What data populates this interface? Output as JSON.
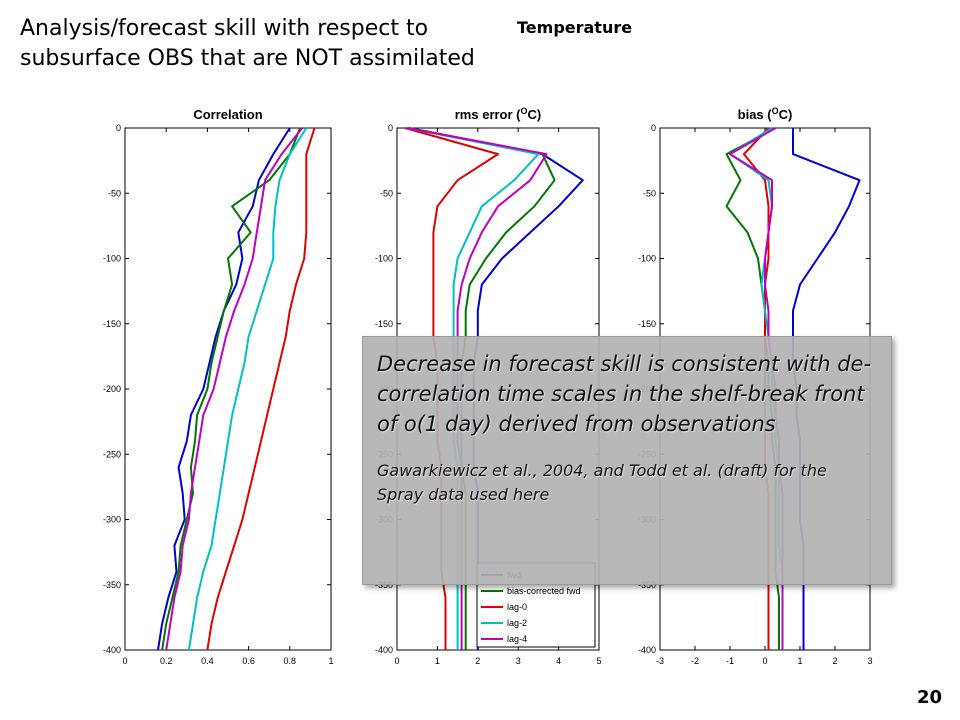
{
  "slide": {
    "title_line1": "Analysis/forecast skill with respect to",
    "title_line2": "subsurface OBS that are NOT assimilated",
    "topic": "Temperature",
    "page_number": "20"
  },
  "callout": {
    "main": "Decrease in forecast skill is consistent with de-correlation time scales in the shelf-break front of o(1 day) derived from observations",
    "citation": "Gawarkiewicz et al., 2004, and Todd et al. (draft) for the Spray data used here"
  },
  "colors": {
    "fwd": "#0000d0",
    "bias_corrected_fwd": "#007800",
    "lag_0": "#e00000",
    "lag_2": "#00c0c0",
    "lag_4": "#c000c0"
  },
  "chart_data": [
    {
      "type": "line",
      "title": "Correlation",
      "xlim": [
        0,
        1
      ],
      "ylim": [
        -400,
        0
      ],
      "xticks": [
        "0",
        "0.2",
        "0.4",
        "0.6",
        "0.8",
        "1"
      ],
      "yticks": [
        "0",
        "-50",
        "-100",
        "-150",
        "-200",
        "-250",
        "-300",
        "-350",
        "-400"
      ],
      "grid": false,
      "y": [
        0,
        -20,
        -40,
        -60,
        -80,
        -100,
        -120,
        -140,
        -160,
        -180,
        -200,
        -220,
        -240,
        -260,
        -280,
        -300,
        -320,
        -340,
        -360,
        -380,
        -400
      ],
      "series": [
        {
          "name": "fwd",
          "color_key": "fwd",
          "x": [
            0.8,
            0.72,
            0.65,
            0.62,
            0.55,
            0.57,
            0.54,
            0.48,
            0.44,
            0.41,
            0.38,
            0.32,
            0.3,
            0.26,
            0.28,
            0.29,
            0.24,
            0.25,
            0.21,
            0.18,
            0.16
          ]
        },
        {
          "name": "bias-corrected fwd",
          "color_key": "bias_corrected_fwd",
          "x": [
            0.85,
            0.8,
            0.7,
            0.52,
            0.61,
            0.5,
            0.52,
            0.48,
            0.45,
            0.42,
            0.4,
            0.35,
            0.34,
            0.32,
            0.33,
            0.3,
            0.27,
            0.26,
            0.23,
            0.2,
            0.18
          ]
        },
        {
          "name": "lag-0",
          "color_key": "lag_0",
          "x": [
            0.92,
            0.88,
            0.88,
            0.88,
            0.88,
            0.87,
            0.83,
            0.8,
            0.78,
            0.75,
            0.72,
            0.69,
            0.66,
            0.63,
            0.6,
            0.57,
            0.53,
            0.49,
            0.45,
            0.42,
            0.4
          ]
        },
        {
          "name": "lag-2",
          "color_key": "lag_2",
          "x": [
            0.88,
            0.8,
            0.75,
            0.73,
            0.72,
            0.72,
            0.68,
            0.64,
            0.6,
            0.58,
            0.55,
            0.52,
            0.5,
            0.48,
            0.46,
            0.44,
            0.42,
            0.38,
            0.35,
            0.33,
            0.31
          ]
        },
        {
          "name": "lag-4",
          "color_key": "lag_4",
          "x": [
            0.86,
            0.76,
            0.68,
            0.66,
            0.64,
            0.62,
            0.58,
            0.53,
            0.49,
            0.46,
            0.43,
            0.38,
            0.36,
            0.34,
            0.32,
            0.31,
            0.28,
            0.27,
            0.24,
            0.22,
            0.2
          ]
        }
      ]
    },
    {
      "type": "line",
      "title": "rms error (",
      "title_sup": "O",
      "title_end": "C)",
      "xlim": [
        0,
        5
      ],
      "ylim": [
        -400,
        0
      ],
      "xticks": [
        "0",
        "1",
        "2",
        "3",
        "4",
        "5"
      ],
      "yticks": [
        "0",
        "-50",
        "-100",
        "-150",
        "-200",
        "-250",
        "-300",
        "-350",
        "-400"
      ],
      "grid": false,
      "legend": {
        "entries": [
          "fwd",
          "bias-corrected fwd",
          "lag-0",
          "lag-2",
          "lag-4"
        ],
        "placement": "bottom-right"
      },
      "y": [
        0,
        -20,
        -40,
        -60,
        -80,
        -100,
        -120,
        -140,
        -160,
        -180,
        -200,
        -220,
        -240,
        -260,
        -280,
        -300,
        -320,
        -340,
        -360,
        -380,
        -400
      ],
      "series": [
        {
          "name": "fwd",
          "color_key": "fwd",
          "x": [
            0.3,
            3.6,
            4.6,
            4.0,
            3.3,
            2.6,
            2.1,
            2.0,
            2.0,
            1.9,
            1.9,
            1.9,
            1.9,
            1.9,
            2.0,
            2.0,
            2.0,
            2.0,
            2.0,
            2.0,
            2.0
          ]
        },
        {
          "name": "bias-corrected fwd",
          "color_key": "bias_corrected_fwd",
          "x": [
            0.3,
            3.6,
            3.9,
            3.4,
            2.7,
            2.2,
            1.8,
            1.7,
            1.7,
            1.6,
            1.6,
            1.6,
            1.6,
            1.6,
            1.7,
            1.7,
            1.7,
            1.7,
            1.7,
            1.7,
            1.7
          ]
        },
        {
          "name": "lag-0",
          "color_key": "lag_0",
          "x": [
            0.2,
            2.5,
            1.5,
            1.0,
            0.9,
            0.9,
            0.9,
            0.9,
            0.9,
            1.0,
            1.0,
            1.0,
            1.0,
            1.1,
            1.1,
            1.1,
            1.1,
            1.1,
            1.2,
            1.2,
            1.2
          ]
        },
        {
          "name": "lag-2",
          "color_key": "lag_2",
          "x": [
            0.25,
            3.5,
            2.9,
            2.1,
            1.8,
            1.5,
            1.4,
            1.4,
            1.4,
            1.4,
            1.4,
            1.4,
            1.4,
            1.5,
            1.5,
            1.5,
            1.5,
            1.5,
            1.5,
            1.5,
            1.5
          ]
        },
        {
          "name": "lag-4",
          "color_key": "lag_4",
          "x": [
            0.25,
            3.7,
            3.3,
            2.5,
            2.1,
            1.8,
            1.6,
            1.5,
            1.5,
            1.5,
            1.5,
            1.5,
            1.5,
            1.6,
            1.6,
            1.6,
            1.6,
            1.6,
            1.6,
            1.6,
            1.6
          ]
        }
      ]
    },
    {
      "type": "line",
      "title": "bias (",
      "title_sup": "O",
      "title_end": "C)",
      "xlim": [
        -3,
        3
      ],
      "ylim": [
        -400,
        0
      ],
      "xticks": [
        "-3",
        "-2",
        "-1",
        "0",
        "1",
        "2",
        "3"
      ],
      "yticks": [
        "0",
        "-50",
        "-100",
        "-150",
        "-200",
        "-250",
        "-300",
        "-350",
        "-400"
      ],
      "grid": false,
      "y": [
        0,
        -20,
        -40,
        -60,
        -80,
        -100,
        -120,
        -140,
        -160,
        -180,
        -200,
        -220,
        -240,
        -260,
        -280,
        -300,
        -320,
        -340,
        -360,
        -380,
        -400
      ],
      "series": [
        {
          "name": "fwd",
          "color_key": "fwd",
          "x": [
            0.8,
            0.8,
            2.7,
            2.4,
            2.0,
            1.5,
            1.0,
            0.8,
            0.8,
            0.8,
            0.9,
            0.9,
            1.0,
            1.0,
            1.0,
            1.0,
            1.1,
            1.1,
            1.1,
            1.1,
            1.1
          ]
        },
        {
          "name": "bias-corrected fwd",
          "color_key": "bias_corrected_fwd",
          "x": [
            0.3,
            -1.1,
            -0.7,
            -1.1,
            -0.5,
            -0.2,
            -0.1,
            0.0,
            0.0,
            0.1,
            0.1,
            0.2,
            0.2,
            0.3,
            0.3,
            0.3,
            0.3,
            0.3,
            0.4,
            0.4,
            0.4
          ]
        },
        {
          "name": "lag-0",
          "color_key": "lag_0",
          "x": [
            0.1,
            -0.6,
            0.0,
            0.1,
            0.1,
            0.1,
            0.0,
            0.0,
            0.0,
            0.0,
            0.0,
            0.0,
            0.0,
            0.0,
            0.1,
            0.1,
            0.1,
            0.1,
            0.1,
            0.1,
            0.1
          ]
        },
        {
          "name": "lag-2",
          "color_key": "lag_2",
          "x": [
            0.2,
            -1.0,
            0.1,
            0.2,
            0.1,
            0.0,
            -0.1,
            0.0,
            0.1,
            0.2,
            0.2,
            0.3,
            0.3,
            0.4,
            0.4,
            0.4,
            0.4,
            0.5,
            0.5,
            0.5,
            0.5
          ]
        },
        {
          "name": "lag-4",
          "color_key": "lag_4",
          "x": [
            0.3,
            -1.0,
            0.2,
            0.2,
            0.1,
            0.0,
            0.0,
            0.1,
            0.1,
            0.2,
            0.3,
            0.3,
            0.4,
            0.4,
            0.5,
            0.5,
            0.5,
            0.5,
            0.5,
            0.5,
            0.5
          ]
        }
      ]
    }
  ]
}
